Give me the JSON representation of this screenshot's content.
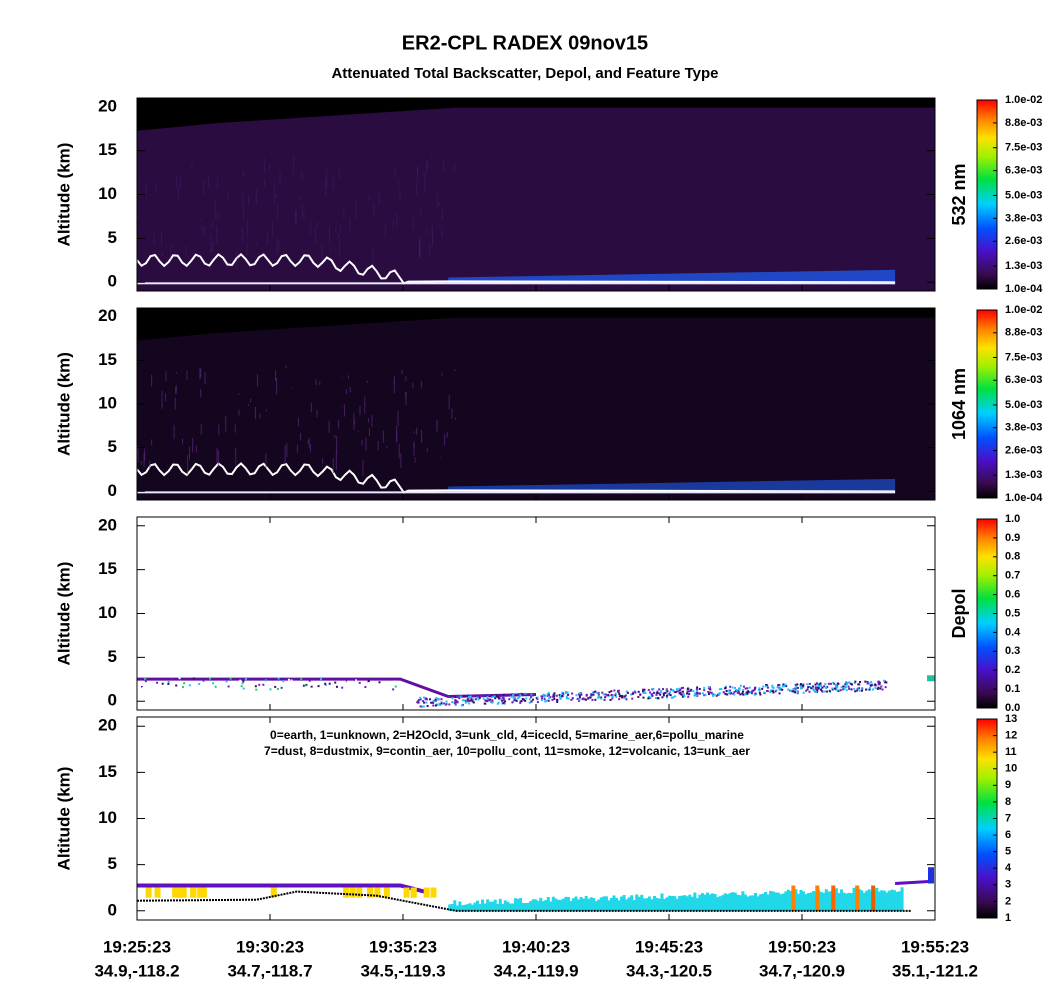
{
  "title": "ER2-CPL RADEX 09nov15",
  "subtitle": "Attenuated Total Backscatter, Depol, and Feature Type",
  "chart_data": [
    {
      "type": "heatmap",
      "ylabel": "Altitude (km)",
      "ylim": [
        -1,
        21
      ],
      "yticks": [
        0,
        5,
        10,
        15,
        20
      ],
      "colorbar": {
        "label": "532 nm",
        "lim": [
          0.0001,
          0.01
        ],
        "ticks": [
          {
            "value": 0.0001,
            "label": "1.0e-04"
          },
          {
            "value": 0.0013,
            "label": "1.3e-03"
          },
          {
            "value": 0.0026,
            "label": "2.6e-03"
          },
          {
            "value": 0.0038,
            "label": "3.8e-03"
          },
          {
            "value": 0.005,
            "label": "5.0e-03"
          },
          {
            "value": 0.0063,
            "label": "6.3e-03"
          },
          {
            "value": 0.0075,
            "label": "7.5e-03"
          },
          {
            "value": 0.0088,
            "label": "8.8e-03"
          },
          {
            "value": 0.01,
            "label": "1.0e-02"
          }
        ]
      }
    },
    {
      "type": "heatmap",
      "ylabel": "Altitude (km)",
      "ylim": [
        -1,
        21
      ],
      "yticks": [
        0,
        5,
        10,
        15,
        20
      ],
      "colorbar": {
        "label": "1064 nm",
        "lim": [
          0.0001,
          0.01
        ],
        "ticks": [
          {
            "value": 0.0001,
            "label": "1.0e-04"
          },
          {
            "value": 0.0013,
            "label": "1.3e-03"
          },
          {
            "value": 0.0026,
            "label": "2.6e-03"
          },
          {
            "value": 0.0038,
            "label": "3.8e-03"
          },
          {
            "value": 0.005,
            "label": "5.0e-03"
          },
          {
            "value": 0.0063,
            "label": "6.3e-03"
          },
          {
            "value": 0.0075,
            "label": "7.5e-03"
          },
          {
            "value": 0.0088,
            "label": "8.8e-03"
          },
          {
            "value": 0.01,
            "label": "1.0e-02"
          }
        ]
      }
    },
    {
      "type": "depol",
      "ylabel": "Altitude (km)",
      "ylim": [
        -1,
        21
      ],
      "yticks": [
        0,
        5,
        10,
        15,
        20
      ],
      "colorbar": {
        "label": "Depol",
        "lim": [
          0,
          1
        ],
        "ticks": [
          {
            "value": 0,
            "label": "0.0"
          },
          0.1,
          0.2,
          0.3,
          0.4,
          0.5,
          0.6,
          0.7,
          0.8,
          0.9,
          {
            "value": 1,
            "label": "1.0"
          }
        ]
      }
    },
    {
      "type": "feature",
      "ylabel": "Altitude (km)",
      "ylim": [
        -1,
        21
      ],
      "yticks": [
        0,
        5,
        10,
        15,
        20
      ],
      "annotation": [
        "0=earth, 1=unknown, 2=H2Ocld, 3=unk_cld, 4=icecld, 5=marine_aer,6=pollu_marine",
        "7=dust, 8=dustmix, 9=contin_aer, 10=pollu_cont, 11=smoke, 12=volcanic, 13=unk_aer"
      ],
      "colorbar": {
        "lim": [
          1,
          13
        ],
        "ticks": [
          1,
          2,
          3,
          4,
          5,
          6,
          7,
          8,
          9,
          10,
          11,
          12,
          13
        ]
      }
    }
  ],
  "x_axis": {
    "ticks": [
      {
        "time": "19:25:23",
        "position": "34.9,-118.2"
      },
      {
        "time": "19:30:23",
        "position": "34.7,-118.7"
      },
      {
        "time": "19:35:23",
        "position": "34.5,-119.3"
      },
      {
        "time": "19:40:23",
        "position": "34.2,-119.9"
      },
      {
        "time": "19:45:23",
        "position": "34.3,-120.5"
      },
      {
        "time": "19:50:23",
        "position": "34.7,-120.9"
      },
      {
        "time": "19:55:23",
        "position": "35.1,-121.2"
      }
    ]
  }
}
